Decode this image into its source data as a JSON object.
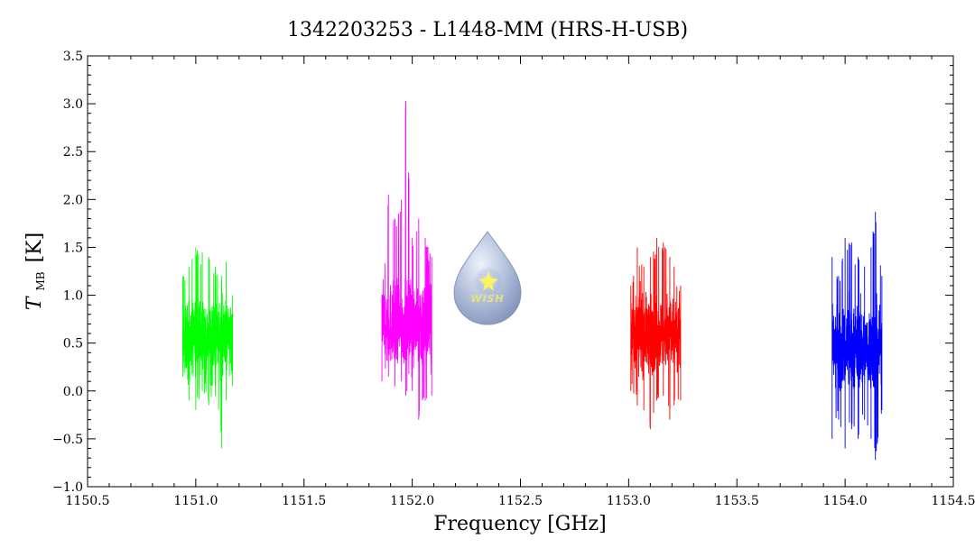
{
  "chart_data": {
    "type": "line",
    "title": "1342203253 - L1448-MM (HRS-H-USB)",
    "xlabel": "Frequency [GHz]",
    "ylabel_main": "T",
    "ylabel_sub": "MB",
    "ylabel_unit": "[K]",
    "xlim": [
      1150.5,
      1154.5
    ],
    "ylim": [
      -1.0,
      3.5
    ],
    "x_ticks": [
      1150.5,
      1151.0,
      1151.5,
      1152.0,
      1152.5,
      1153.0,
      1153.5,
      1154.0,
      1154.5
    ],
    "x_tick_labels": [
      "1150.5",
      "1151.0",
      "1151.5",
      "1152.0",
      "1152.5",
      "1153.0",
      "1153.5",
      "1154.0",
      "1154.5"
    ],
    "y_ticks": [
      -1.0,
      -0.5,
      0.0,
      0.5,
      1.0,
      1.5,
      2.0,
      2.5,
      3.0,
      3.5
    ],
    "y_tick_labels": [
      "−1.0",
      "−0.5",
      "0.0",
      "0.5",
      "1.0",
      "1.5",
      "2.0",
      "2.5",
      "3.0",
      "3.5"
    ],
    "grid": false,
    "series": [
      {
        "color": "#00ff00",
        "x_range": [
          1150.94,
          1151.17
        ],
        "baseline": 0.55,
        "noise": 0.28,
        "x": [
          1150.94,
          1150.97,
          1151.0,
          1151.03,
          1151.06,
          1151.09,
          1151.12,
          1151.14,
          1151.17
        ],
        "y_min": [
          0.15,
          -0.1,
          -0.2,
          0.0,
          -0.15,
          -0.05,
          -0.6,
          -0.1,
          0.05
        ],
        "y_max": [
          1.2,
          1.3,
          1.5,
          1.45,
          1.4,
          1.3,
          1.2,
          1.35,
          1.0
        ]
      },
      {
        "color": "#ff00ff",
        "x_range": [
          1151.86,
          1152.09
        ],
        "baseline": 0.7,
        "noise": 0.3,
        "x": [
          1151.86,
          1151.89,
          1151.92,
          1151.95,
          1151.97,
          1152.0,
          1152.03,
          1152.06,
          1152.09
        ],
        "y_min": [
          0.1,
          0.15,
          0.05,
          0.1,
          -0.05,
          0.0,
          -0.3,
          -0.1,
          -0.05
        ],
        "y_max": [
          1.0,
          2.05,
          1.8,
          2.0,
          3.03,
          1.6,
          1.8,
          1.6,
          1.4
        ]
      },
      {
        "color": "#ff0000",
        "x_range": [
          1153.01,
          1153.24
        ],
        "baseline": 0.6,
        "noise": 0.27,
        "x": [
          1153.01,
          1153.04,
          1153.07,
          1153.1,
          1153.13,
          1153.16,
          1153.19,
          1153.21,
          1153.24
        ],
        "y_min": [
          0.0,
          -0.15,
          -0.2,
          -0.4,
          -0.1,
          -0.05,
          -0.3,
          -0.15,
          -0.1
        ],
        "y_max": [
          1.1,
          1.5,
          1.3,
          1.4,
          1.6,
          1.55,
          1.4,
          1.3,
          1.1
        ]
      },
      {
        "color": "#0000ff",
        "x_range": [
          1153.94,
          1154.17
        ],
        "baseline": 0.45,
        "noise": 0.3,
        "x": [
          1153.94,
          1153.97,
          1154.0,
          1154.03,
          1154.06,
          1154.09,
          1154.12,
          1154.14,
          1154.17
        ],
        "y_min": [
          -0.5,
          -0.3,
          -0.6,
          -0.4,
          -0.5,
          -0.3,
          -0.5,
          -0.72,
          -0.2
        ],
        "y_max": [
          1.4,
          1.2,
          1.6,
          1.55,
          1.4,
          1.3,
          1.5,
          1.87,
          1.2
        ]
      }
    ]
  },
  "logo": {
    "text": "WISH"
  }
}
